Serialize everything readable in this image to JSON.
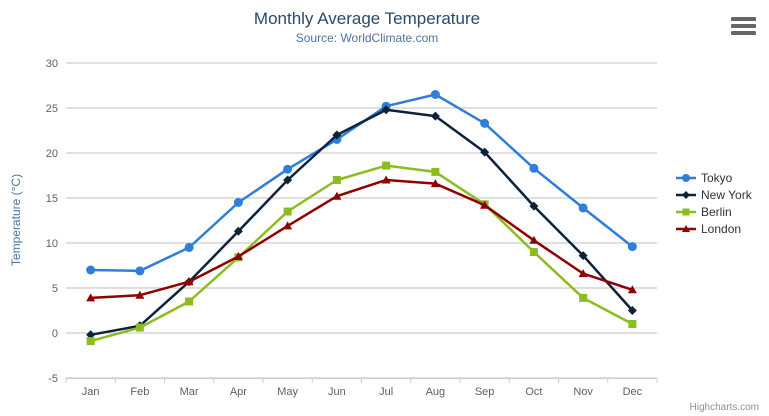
{
  "header": {
    "title": "Monthly Average Temperature",
    "subtitle": "Source: WorldClimate.com"
  },
  "credits": {
    "label": "Highcharts.com"
  },
  "menu": {
    "icon": "hamburger-icon"
  },
  "axis_colors": {
    "gridline": "#C0C0C0",
    "axis_line": "#C0D0E0",
    "tick_label": "#606060",
    "axis_title": "#4d759e"
  },
  "chart_data": {
    "type": "line",
    "title": "Monthly Average Temperature",
    "subtitle": "Source: WorldClimate.com",
    "xlabel": "",
    "ylabel": "Temperature (°C)",
    "categories": [
      "Jan",
      "Feb",
      "Mar",
      "Apr",
      "May",
      "Jun",
      "Jul",
      "Aug",
      "Sep",
      "Oct",
      "Nov",
      "Dec"
    ],
    "ylim": [
      -5,
      30
    ],
    "yticks": [
      -5,
      0,
      5,
      10,
      15,
      20,
      25,
      30
    ],
    "grid": true,
    "legend_position": "right",
    "series": [
      {
        "name": "Tokyo",
        "color": "#2f7ed8",
        "marker": "circle",
        "values": [
          7.0,
          6.9,
          9.5,
          14.5,
          18.2,
          21.5,
          25.2,
          26.5,
          23.3,
          18.3,
          13.9,
          9.6
        ]
      },
      {
        "name": "New York",
        "color": "#0d233a",
        "marker": "diamond",
        "values": [
          -0.2,
          0.8,
          5.7,
          11.3,
          17.0,
          22.0,
          24.8,
          24.1,
          20.1,
          14.1,
          8.6,
          2.5
        ]
      },
      {
        "name": "Berlin",
        "color": "#8bbc21",
        "marker": "square",
        "values": [
          -0.9,
          0.6,
          3.5,
          8.4,
          13.5,
          17.0,
          18.6,
          17.9,
          14.3,
          9.0,
          3.9,
          1.0
        ]
      },
      {
        "name": "London",
        "color": "#910000",
        "marker": "triangle",
        "values": [
          3.9,
          4.2,
          5.7,
          8.5,
          11.9,
          15.2,
          17.0,
          16.6,
          14.2,
          10.3,
          6.6,
          4.8
        ]
      }
    ]
  }
}
